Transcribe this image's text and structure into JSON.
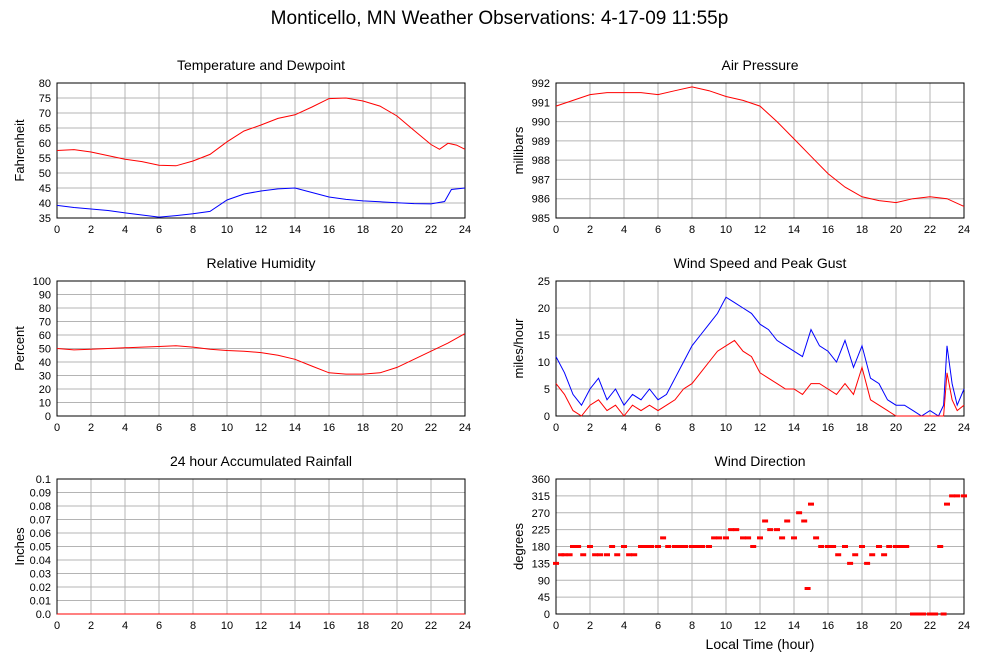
{
  "page_title": "Monticello, MN Weather Observations: 4-17-09 11:55p",
  "chart_data": [
    {
      "id": "temp",
      "type": "line",
      "title": "Temperature and Dewpoint",
      "xlabel": "",
      "ylabel": "Fahrenheit",
      "xlim": [
        0,
        24
      ],
      "ylim": [
        35,
        80
      ],
      "x_ticks": [
        0,
        2,
        4,
        6,
        8,
        10,
        12,
        14,
        16,
        18,
        20,
        22,
        24
      ],
      "y_ticks": [
        35,
        40,
        45,
        50,
        55,
        60,
        65,
        70,
        75,
        80
      ],
      "grid": true,
      "series": [
        {
          "color": "#ff0000",
          "x": [
            0,
            1,
            2,
            3,
            4,
            5,
            6,
            7,
            8,
            9,
            10,
            11,
            12,
            13,
            14,
            15,
            16,
            17,
            18,
            19,
            20,
            21,
            22,
            22.5,
            23,
            23.5,
            24
          ],
          "y": [
            57.5,
            57.8,
            57,
            55.8,
            54.6,
            53.8,
            52.6,
            52.4,
            54,
            56.2,
            60.4,
            64,
            66,
            68.2,
            69.4,
            72,
            74.8,
            75,
            74,
            72.3,
            69,
            64.2,
            59.5,
            57.9,
            59.9,
            59.3,
            57.9
          ]
        },
        {
          "color": "#0000ff",
          "x": [
            0,
            1,
            2,
            3,
            4,
            5,
            6,
            7,
            8,
            9,
            10,
            11,
            12,
            13,
            14,
            15,
            16,
            17,
            18,
            19,
            20,
            21,
            22,
            22.8,
            23.2,
            24
          ],
          "y": [
            39.2,
            38.5,
            38,
            37.5,
            36.7,
            36,
            35.3,
            35.8,
            36.4,
            37.2,
            41,
            43,
            44,
            44.7,
            45,
            43.5,
            42,
            41.2,
            40.7,
            40.4,
            40.1,
            39.8,
            39.7,
            40.5,
            44.5,
            45
          ]
        }
      ]
    },
    {
      "id": "pressure",
      "type": "line",
      "title": "Air Pressure",
      "xlabel": "",
      "ylabel": "millibars",
      "xlim": [
        0,
        24
      ],
      "ylim": [
        985,
        992
      ],
      "x_ticks": [
        0,
        2,
        4,
        6,
        8,
        10,
        12,
        14,
        16,
        18,
        20,
        22,
        24
      ],
      "y_ticks": [
        985,
        986,
        987,
        988,
        989,
        990,
        991,
        992
      ],
      "grid": true,
      "series": [
        {
          "color": "#ff0000",
          "x": [
            0,
            1,
            2,
            3,
            4,
            5,
            6,
            7,
            8,
            9,
            10,
            11,
            12,
            13,
            14,
            15,
            16,
            17,
            18,
            19,
            20,
            21,
            22,
            23,
            24
          ],
          "y": [
            990.8,
            991.1,
            991.4,
            991.5,
            991.5,
            991.5,
            991.4,
            991.6,
            991.8,
            991.6,
            991.3,
            991.1,
            990.8,
            990,
            989.1,
            988.2,
            987.3,
            986.6,
            986.1,
            985.9,
            985.8,
            986,
            986.1,
            986,
            985.6
          ]
        }
      ]
    },
    {
      "id": "humidity",
      "type": "line",
      "title": "Relative Humidity",
      "xlabel": "",
      "ylabel": "Percent",
      "xlim": [
        0,
        24
      ],
      "ylim": [
        0,
        100
      ],
      "x_ticks": [
        0,
        2,
        4,
        6,
        8,
        10,
        12,
        14,
        16,
        18,
        20,
        22,
        24
      ],
      "y_ticks": [
        0,
        10,
        20,
        30,
        40,
        50,
        60,
        70,
        80,
        90,
        100
      ],
      "grid": true,
      "series": [
        {
          "color": "#ff0000",
          "x": [
            0,
            1,
            2,
            3,
            4,
            5,
            6,
            7,
            8,
            9,
            10,
            11,
            12,
            13,
            14,
            15,
            16,
            17,
            18,
            19,
            20,
            21,
            22,
            23,
            24
          ],
          "y": [
            50,
            49,
            49.5,
            50,
            50.5,
            51,
            51.5,
            52,
            51,
            49.5,
            48.5,
            48,
            47,
            45,
            42,
            37,
            32,
            31,
            31,
            32,
            36,
            42,
            48,
            54,
            61
          ]
        }
      ]
    },
    {
      "id": "wind",
      "type": "line",
      "title": "Wind Speed and Peak Gust",
      "xlabel": "",
      "ylabel": "miles/hour",
      "xlim": [
        0,
        24
      ],
      "ylim": [
        0,
        25
      ],
      "x_ticks": [
        0,
        2,
        4,
        6,
        8,
        10,
        12,
        14,
        16,
        18,
        20,
        22,
        24
      ],
      "y_ticks": [
        0,
        5,
        10,
        15,
        20,
        25
      ],
      "grid": true,
      "series": [
        {
          "color": "#0000ff",
          "x": [
            0,
            0.5,
            1,
            1.5,
            2,
            2.5,
            3,
            3.5,
            4,
            4.5,
            5,
            5.5,
            6,
            6.5,
            7,
            7.5,
            8,
            8.5,
            9,
            9.5,
            10,
            10.5,
            11,
            11.5,
            12,
            12.5,
            13,
            13.5,
            14,
            14.5,
            15,
            15.5,
            16,
            16.5,
            17,
            17.5,
            18,
            18.5,
            19,
            19.5,
            20,
            20.5,
            21,
            21.5,
            22,
            22.5,
            22.8,
            23,
            23.3,
            23.6,
            24
          ],
          "y": [
            11,
            8,
            4,
            2,
            5,
            7,
            3,
            5,
            2,
            4,
            3,
            5,
            3,
            4,
            7,
            10,
            13,
            15,
            17,
            19,
            22,
            21,
            20,
            19,
            17,
            16,
            14,
            13,
            12,
            11,
            16,
            13,
            12,
            10,
            14,
            9,
            13,
            7,
            6,
            3,
            2,
            2,
            1,
            0,
            1,
            0,
            2,
            13,
            6,
            2,
            5
          ]
        },
        {
          "color": "#ff0000",
          "x": [
            0,
            0.5,
            1,
            1.5,
            2,
            2.5,
            3,
            3.5,
            4,
            4.5,
            5,
            5.5,
            6,
            6.5,
            7,
            7.5,
            8,
            8.5,
            9,
            9.5,
            10,
            10.5,
            11,
            11.5,
            12,
            12.5,
            13,
            13.5,
            14,
            14.5,
            15,
            15.5,
            16,
            16.5,
            17,
            17.5,
            18,
            18.5,
            19,
            19.5,
            20,
            20.5,
            21,
            21.5,
            22,
            22.5,
            22.8,
            23,
            23.3,
            23.6,
            24
          ],
          "y": [
            6,
            4,
            1,
            0,
            2,
            3,
            1,
            2,
            0,
            2,
            1,
            2,
            1,
            2,
            3,
            5,
            6,
            8,
            10,
            12,
            13,
            14,
            12,
            11,
            8,
            7,
            6,
            5,
            5,
            4,
            6,
            6,
            5,
            4,
            6,
            4,
            9,
            3,
            2,
            1,
            0,
            0,
            0,
            0,
            0,
            0,
            0,
            8,
            3,
            1,
            2
          ]
        }
      ]
    },
    {
      "id": "rain",
      "type": "line",
      "title": "24 hour Accumulated Rainfall",
      "xlabel": "",
      "ylabel": "Inches",
      "xlim": [
        0,
        24
      ],
      "ylim": [
        0,
        0.1
      ],
      "x_ticks": [
        0,
        2,
        4,
        6,
        8,
        10,
        12,
        14,
        16,
        18,
        20,
        22,
        24
      ],
      "y_ticks": [
        "0.0",
        "0.01",
        "0.02",
        "0.03",
        "0.04",
        "0.05",
        "0.06",
        "0.07",
        "0.08",
        "0.09",
        "0.1"
      ],
      "grid": true,
      "series": [
        {
          "color": "#ff0000",
          "x": [
            0,
            24
          ],
          "y": [
            0,
            0
          ]
        }
      ]
    },
    {
      "id": "direction",
      "type": "scatter",
      "title": "Wind Direction",
      "xlabel": "Local Time (hour)",
      "ylabel": "degrees",
      "xlim": [
        0,
        24
      ],
      "ylim": [
        0,
        360
      ],
      "x_ticks": [
        0,
        2,
        4,
        6,
        8,
        10,
        12,
        14,
        16,
        18,
        20,
        22,
        24
      ],
      "y_ticks": [
        0,
        45,
        90,
        135,
        180,
        225,
        270,
        315,
        360
      ],
      "grid": true,
      "series": [
        {
          "color": "#ff0000",
          "x": [
            0,
            0.3,
            0.5,
            0.8,
            1,
            1.3,
            1.6,
            2,
            2.3,
            2.6,
            3,
            3.3,
            3.6,
            4,
            4.3,
            4.6,
            5,
            5.3,
            5.6,
            6,
            6.3,
            6.6,
            7,
            7.3,
            7.6,
            8,
            8.3,
            8.6,
            9,
            9.3,
            9.6,
            10,
            10.3,
            10.6,
            11,
            11.3,
            11.6,
            12,
            12.3,
            12.6,
            13,
            13.3,
            13.6,
            14,
            14.3,
            14.6,
            14.8,
            15,
            15.3,
            15.6,
            16,
            16.3,
            16.6,
            17,
            17.3,
            17.6,
            18,
            18.3,
            18.6,
            19,
            19.3,
            19.6,
            20,
            20.3,
            20.6,
            21,
            21.3,
            21.6,
            22,
            22.3,
            22.6,
            22.8,
            23,
            23.3,
            23.6,
            24
          ],
          "y": [
            135,
            158,
            158,
            158,
            180,
            180,
            158,
            180,
            158,
            158,
            158,
            180,
            158,
            180,
            158,
            158,
            180,
            180,
            180,
            180,
            203,
            180,
            180,
            180,
            180,
            180,
            180,
            180,
            180,
            203,
            203,
            203,
            225,
            225,
            203,
            203,
            180,
            203,
            248,
            225,
            225,
            203,
            248,
            203,
            270,
            248,
            68,
            293,
            203,
            180,
            180,
            180,
            158,
            180,
            135,
            158,
            180,
            135,
            158,
            180,
            158,
            180,
            180,
            180,
            180,
            0,
            0,
            0,
            0,
            0,
            180,
            0,
            293,
            315,
            315,
            315
          ]
        }
      ]
    }
  ]
}
